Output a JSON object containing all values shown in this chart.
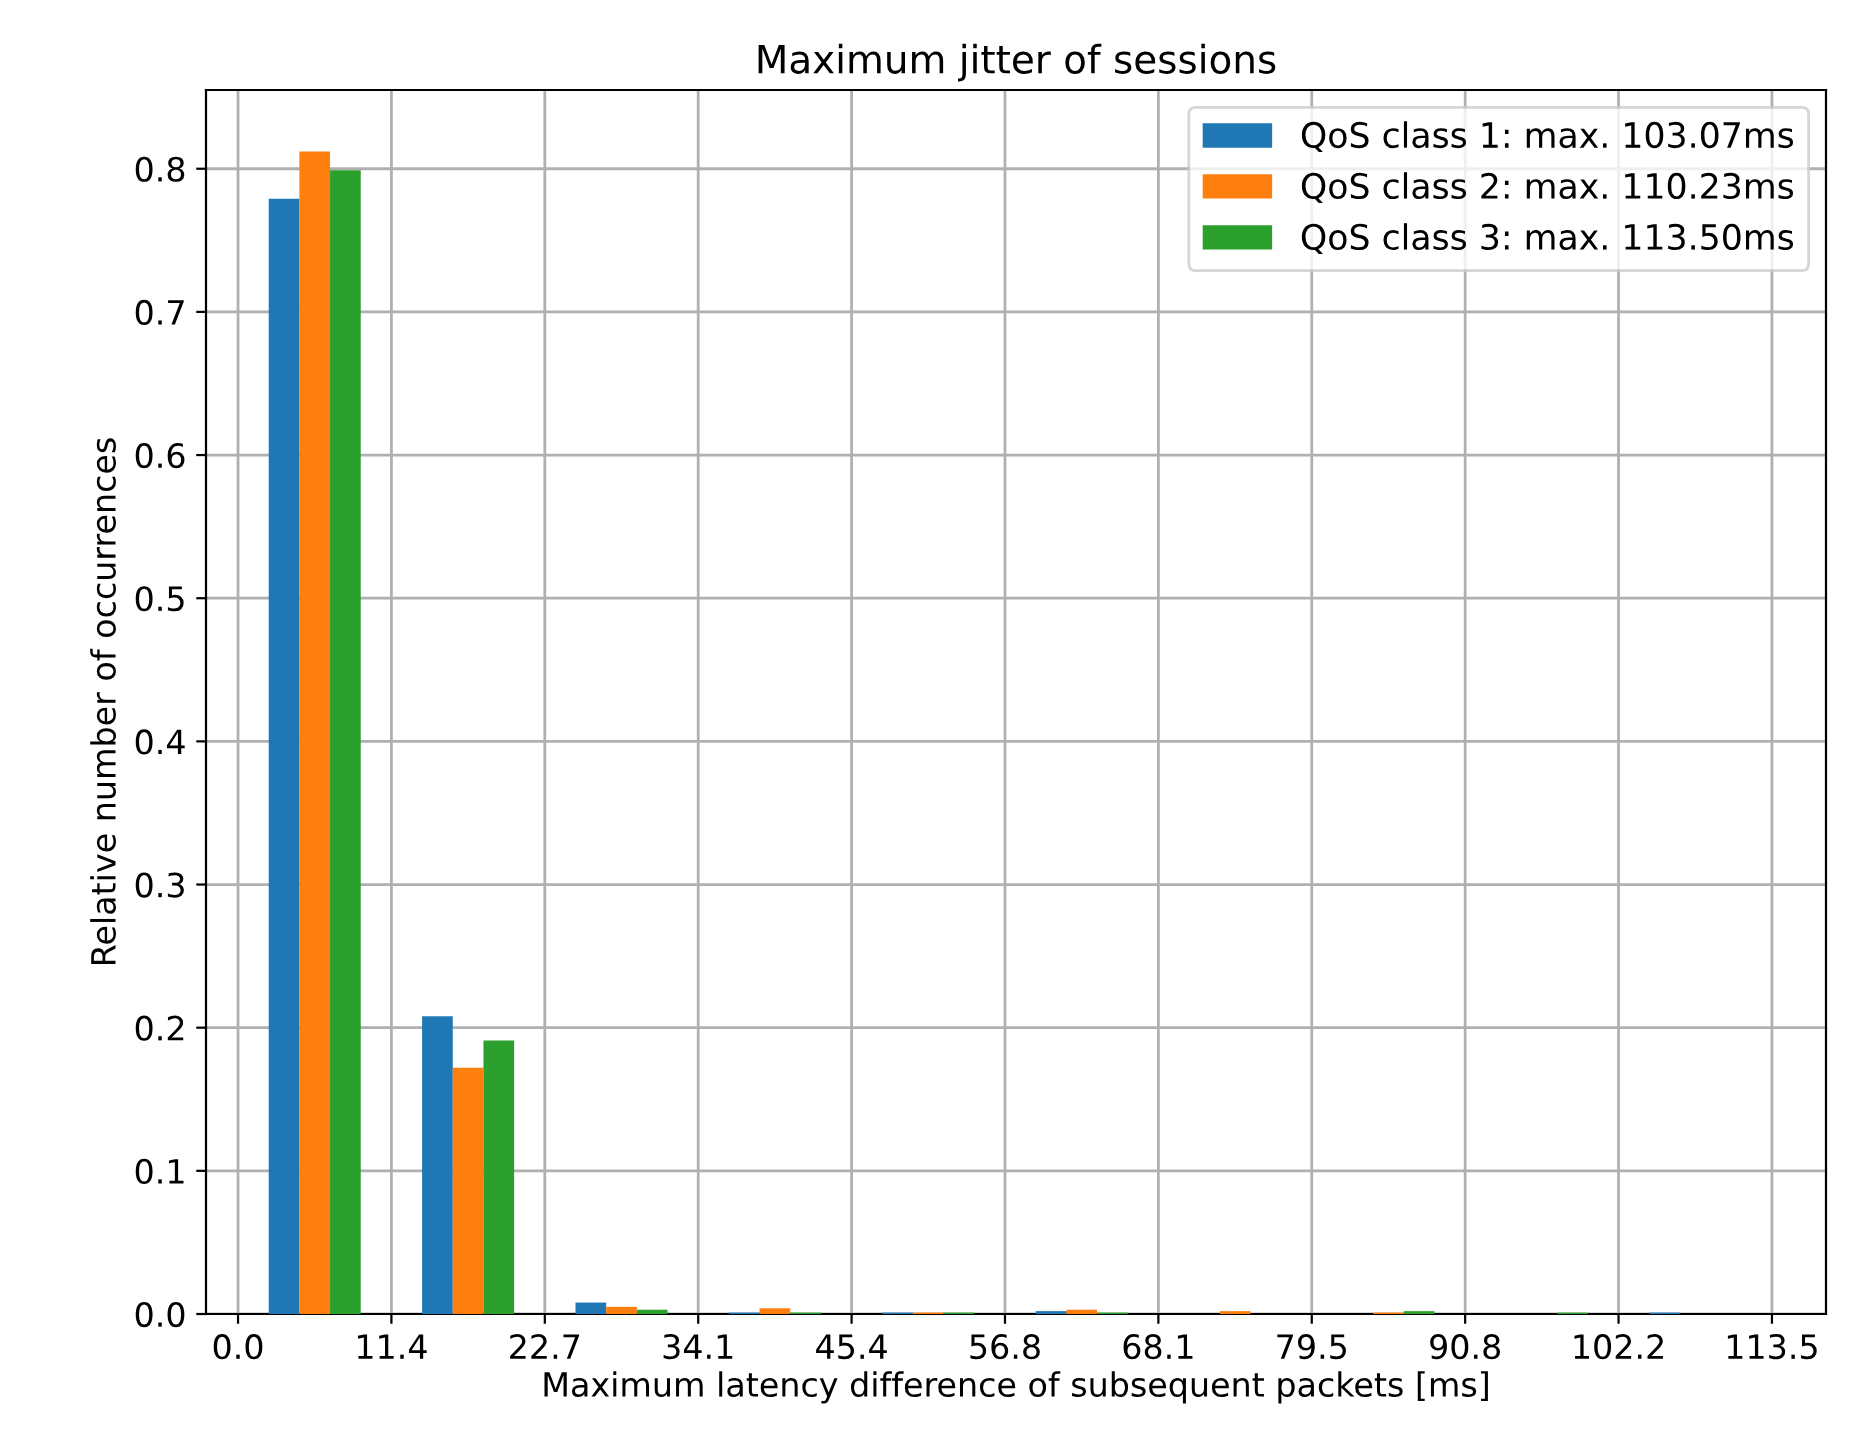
{
  "chart_data": {
    "type": "histogram",
    "title": "Maximum jitter of sessions",
    "xlabel": "Maximum latency difference of subsequent packets [ms]",
    "ylabel": "Relative number of occurrences",
    "bins": [
      0,
      11.35,
      22.7,
      34.05,
      45.4,
      56.75,
      68.1,
      79.45,
      90.8,
      102.15,
      113.5
    ],
    "series": [
      {
        "name": "QoS class 1: max. 103.07ms",
        "color": "#1f77b4",
        "values": [
          0.779,
          0.208,
          0.008,
          0.001,
          0.001,
          0.002,
          0,
          0,
          0,
          0.001
        ]
      },
      {
        "name": "QoS class 2: max. 110.23ms",
        "color": "#ff7f0e",
        "values": [
          0.812,
          0.172,
          0.005,
          0.004,
          0.001,
          0.003,
          0.002,
          0.001,
          0,
          0
        ]
      },
      {
        "name": "QoS class 3: max. 113.50ms",
        "color": "#2ca02c",
        "values": [
          0.799,
          0.191,
          0.003,
          0.001,
          0.001,
          0.001,
          0,
          0.002,
          0.001,
          0
        ]
      }
    ],
    "xlim": [
      -2.37,
      117.5
    ],
    "ylim": [
      0,
      0.855
    ],
    "xticks": [
      {
        "value": 0,
        "label": "0.0"
      },
      {
        "value": 11.35,
        "label": "11.4"
      },
      {
        "value": 22.7,
        "label": "22.7"
      },
      {
        "value": 34.05,
        "label": "34.1"
      },
      {
        "value": 45.4,
        "label": "45.4"
      },
      {
        "value": 56.75,
        "label": "56.8"
      },
      {
        "value": 68.1,
        "label": "68.1"
      },
      {
        "value": 79.45,
        "label": "79.5"
      },
      {
        "value": 90.8,
        "label": "90.8"
      },
      {
        "value": 102.15,
        "label": "102.2"
      },
      {
        "value": 113.5,
        "label": "113.5"
      }
    ],
    "yticks": [
      {
        "value": 0,
        "label": "0.0"
      },
      0.1,
      0.2,
      0.3,
      0.4,
      0.5,
      0.6,
      0.7,
      0.8
    ],
    "grid": true,
    "legend": "top right"
  }
}
